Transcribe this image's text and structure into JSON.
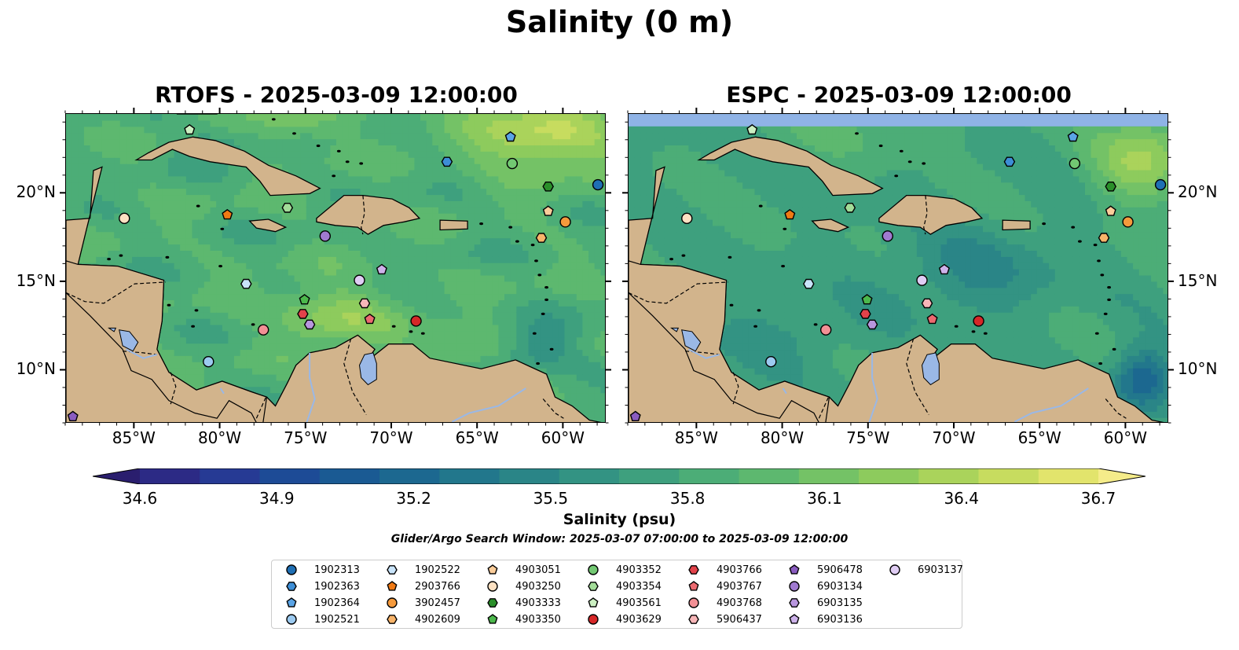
{
  "title": "Salinity (0 m)",
  "panels": [
    {
      "title": "RTOFS - 2025-03-09 12:00:00",
      "model": "rtofs"
    },
    {
      "title": "ESPC - 2025-03-09 12:00:00",
      "model": "espc"
    }
  ],
  "map": {
    "lon_range": [
      -89,
      -57.5
    ],
    "lat_range": [
      7,
      24.5
    ],
    "lon_ticks": [
      "85°W",
      "80°W",
      "75°W",
      "70°W",
      "65°W",
      "60°W"
    ],
    "lon_tick_values": [
      -85,
      -80,
      -75,
      -70,
      -65,
      -60
    ],
    "lat_ticks": [
      "20°N",
      "15°N",
      "10°N"
    ],
    "lat_tick_values": [
      20,
      15,
      10
    ],
    "colors": {
      "land": "#d2b48c",
      "pacific": "#2b1d6e",
      "lake": "#9ab8e6",
      "espc_nodata": "#8fb3e6"
    }
  },
  "colorbar": {
    "label": "Salinity (psu)",
    "ticks": [
      "34.6",
      "34.9",
      "35.2",
      "35.5",
      "35.8",
      "36.1",
      "36.4",
      "36.7"
    ],
    "min": 34.6,
    "max": 36.7,
    "colors": [
      "#2a1e6e",
      "#2c2a85",
      "#263a94",
      "#1d4b96",
      "#1a5a93",
      "#1c6890",
      "#22778c",
      "#2a8587",
      "#339383",
      "#3ea07e",
      "#4cad77",
      "#5db86f",
      "#74c266",
      "#8dcb5d",
      "#aad35b",
      "#c7dc5f",
      "#e2e46c",
      "#f5ec8a"
    ]
  },
  "search_window": "Glider/Argo Search Window: 2025-03-07 07:00:00 to 2025-03-09 12:00:00",
  "legend": [
    {
      "id": "1902313",
      "shape": "circle",
      "color": "#1f6fb4"
    },
    {
      "id": "1902363",
      "shape": "hexagon",
      "color": "#3d8ed6"
    },
    {
      "id": "1902364",
      "shape": "pentagon",
      "color": "#5aa4e6"
    },
    {
      "id": "1902521",
      "shape": "circle",
      "color": "#9ccaf0"
    },
    {
      "id": "1902522",
      "shape": "hexagon",
      "color": "#c9e4fa"
    },
    {
      "id": "2903766",
      "shape": "pentagon",
      "color": "#f07a14"
    },
    {
      "id": "3902457",
      "shape": "circle",
      "color": "#f59a3c"
    },
    {
      "id": "4902609",
      "shape": "hexagon",
      "color": "#f8b46a"
    },
    {
      "id": "4903051",
      "shape": "pentagon",
      "color": "#fbcd9a"
    },
    {
      "id": "4903250",
      "shape": "circle",
      "color": "#fde1c2"
    },
    {
      "id": "4903333",
      "shape": "hexagon",
      "color": "#2a8f2a"
    },
    {
      "id": "4903350",
      "shape": "pentagon",
      "color": "#4cb84c"
    },
    {
      "id": "4903352",
      "shape": "circle",
      "color": "#72c872"
    },
    {
      "id": "4903354",
      "shape": "hexagon",
      "color": "#a2dc98"
    },
    {
      "id": "4903561",
      "shape": "pentagon",
      "color": "#ccf0c2"
    },
    {
      "id": "4903629",
      "shape": "circle",
      "color": "#d62728"
    },
    {
      "id": "4903766",
      "shape": "hexagon",
      "color": "#e2424a"
    },
    {
      "id": "4903767",
      "shape": "pentagon",
      "color": "#ec6a70"
    },
    {
      "id": "4903768",
      "shape": "circle",
      "color": "#f29095"
    },
    {
      "id": "5906437",
      "shape": "hexagon",
      "color": "#f7b6b8"
    },
    {
      "id": "5906478",
      "shape": "pentagon",
      "color": "#8a5cc0"
    },
    {
      "id": "6903134",
      "shape": "circle",
      "color": "#a07ad0"
    },
    {
      "id": "6903135",
      "shape": "hexagon",
      "color": "#b896de"
    },
    {
      "id": "6903136",
      "shape": "pentagon",
      "color": "#cdb2ea"
    },
    {
      "id": "6903137",
      "shape": "circle",
      "color": "#e0cdf4"
    }
  ],
  "floats": [
    {
      "id": "1902313",
      "lon": -58.0,
      "lat": 20.5
    },
    {
      "id": "1902363",
      "lon": -66.8,
      "lat": 21.8
    },
    {
      "id": "1902364",
      "lon": -63.1,
      "lat": 23.2
    },
    {
      "id": "1902521",
      "lon": -80.7,
      "lat": 10.5
    },
    {
      "id": "1902522",
      "lon": -78.5,
      "lat": 14.9
    },
    {
      "id": "2903766",
      "lon": -79.6,
      "lat": 18.8
    },
    {
      "id": "3902457",
      "lon": -59.9,
      "lat": 18.4
    },
    {
      "id": "4902609",
      "lon": -61.3,
      "lat": 17.5
    },
    {
      "id": "4903051",
      "lon": -60.9,
      "lat": 19.0
    },
    {
      "id": "4903250",
      "lon": -85.6,
      "lat": 18.6
    },
    {
      "id": "4903333",
      "lon": -60.9,
      "lat": 20.4
    },
    {
      "id": "4903350",
      "lon": -75.1,
      "lat": 14.0
    },
    {
      "id": "4903352",
      "lon": -63.0,
      "lat": 21.7
    },
    {
      "id": "4903354",
      "lon": -76.1,
      "lat": 19.2
    },
    {
      "id": "4903561",
      "lon": -81.8,
      "lat": 23.6
    },
    {
      "id": "4903629",
      "lon": -68.6,
      "lat": 12.8
    },
    {
      "id": "4903766",
      "lon": -75.2,
      "lat": 13.2
    },
    {
      "id": "4903767",
      "lon": -71.3,
      "lat": 12.9
    },
    {
      "id": "4903768",
      "lon": -77.5,
      "lat": 12.3
    },
    {
      "id": "5906437",
      "lon": -71.6,
      "lat": 13.8
    },
    {
      "id": "5906478",
      "lon": -88.6,
      "lat": 7.4
    },
    {
      "id": "6903134",
      "lon": -73.9,
      "lat": 17.6
    },
    {
      "id": "6903135",
      "lon": -74.8,
      "lat": 12.6
    },
    {
      "id": "6903136",
      "lon": -70.6,
      "lat": 15.7
    },
    {
      "id": "6903137",
      "lon": -71.9,
      "lat": 15.1
    }
  ]
}
